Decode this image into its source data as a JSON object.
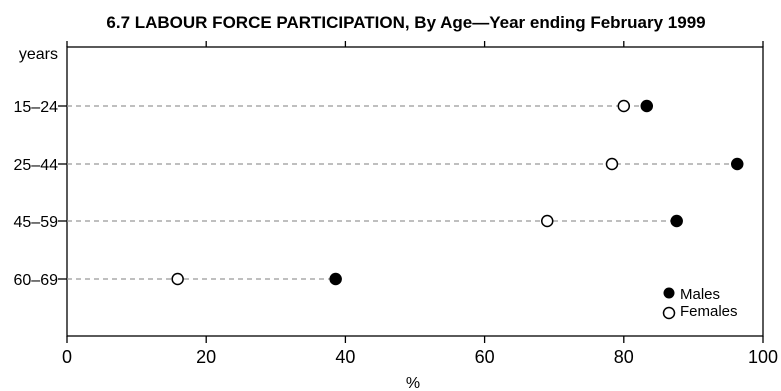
{
  "chart_data": {
    "type": "scatter",
    "title": "6.7  LABOUR FORCE PARTICIPATION, By Age—Year ending February 1999",
    "ylabel": "years",
    "xlabel": "%",
    "categories": [
      "15–24",
      "25–44",
      "45–59",
      "60–69"
    ],
    "xlim": [
      0,
      100
    ],
    "xticks": [
      "0",
      "20",
      "40",
      "60",
      "80",
      "100"
    ],
    "legend_position": "bottom-right",
    "series": [
      {
        "name": "Males",
        "marker": "filled-circle",
        "values": [
          83.3,
          96.3,
          87.6,
          38.6
        ]
      },
      {
        "name": "Females",
        "marker": "open-circle",
        "values": [
          80.0,
          78.3,
          69.0,
          15.9
        ]
      }
    ],
    "grid": "dashed horizontal leaders"
  }
}
